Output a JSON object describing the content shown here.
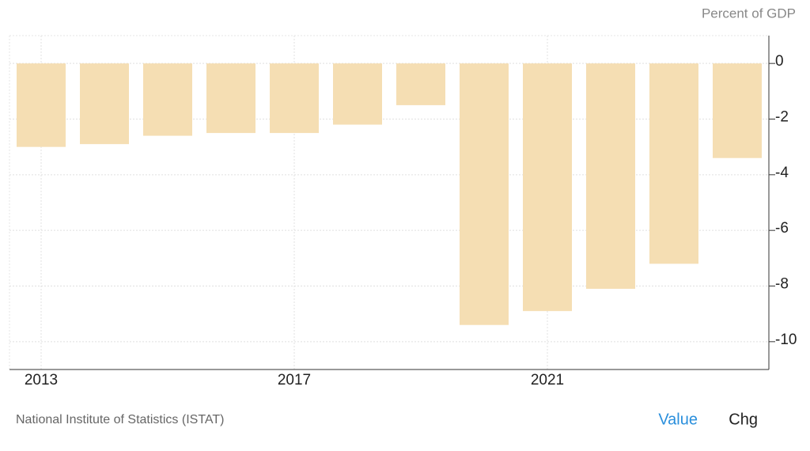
{
  "chart_data": {
    "type": "bar",
    "y_label": "Percent of GDP",
    "categories": [
      "2013",
      null,
      null,
      null,
      "2017",
      null,
      null,
      null,
      "2021",
      null,
      null,
      null
    ],
    "values": [
      -3.0,
      -2.9,
      -2.6,
      -2.5,
      -2.5,
      -2.2,
      -1.5,
      -9.4,
      -8.9,
      -8.1,
      -7.2,
      -3.4
    ],
    "color": "#f5deb3",
    "ylim": [
      -11,
      1
    ],
    "yticks": [
      0,
      -2,
      -4,
      -6,
      -8,
      -10
    ],
    "grid": true,
    "source": "National Institute of Statistics (ISTAT)",
    "tabs": [
      "Value",
      "Chg"
    ]
  }
}
